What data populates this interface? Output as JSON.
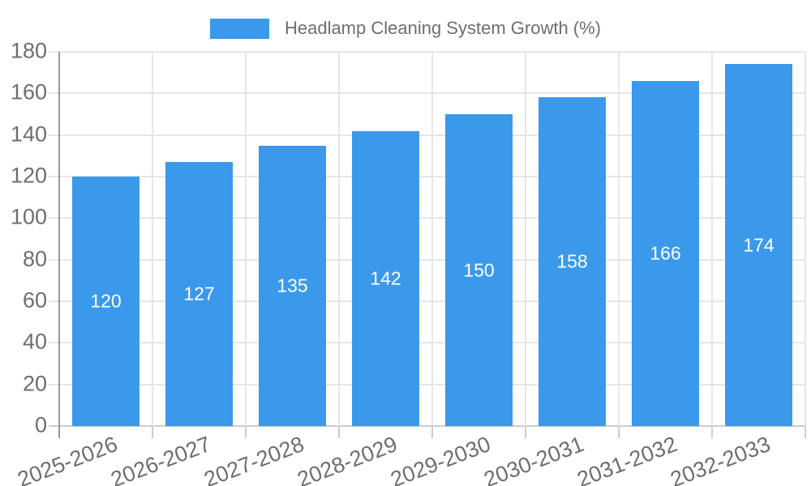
{
  "chart_data": {
    "type": "bar",
    "title": "Headlamp Cleaning System Growth (%)",
    "legend_position": "top",
    "categories": [
      "2025-2026",
      "2026-2027",
      "2027-2028",
      "2028-2029",
      "2029-2030",
      "2030-2031",
      "2031-2032",
      "2032-2033"
    ],
    "series": [
      {
        "name": "Headlamp Cleaning System Growth (%)",
        "values": [
          120,
          127,
          135,
          142,
          150,
          158,
          166,
          174
        ]
      }
    ],
    "value_labels_shown": true,
    "xlabel": "",
    "ylabel": "",
    "ylim": [
      0,
      180
    ],
    "yticks": [
      0,
      20,
      40,
      60,
      80,
      100,
      120,
      140,
      160,
      180
    ],
    "grid": true,
    "x_label_rotation_deg": -21,
    "colors": {
      "bar": "#3b99ec",
      "bar_value_text": "#ffffff",
      "axis_text": "#6e6e6e",
      "legend_text": "#6e6e6e",
      "gridline": "#e6e6e6",
      "y_axis_line": "#999999",
      "baseline": "#cccccc",
      "background": "#ffffff"
    }
  }
}
